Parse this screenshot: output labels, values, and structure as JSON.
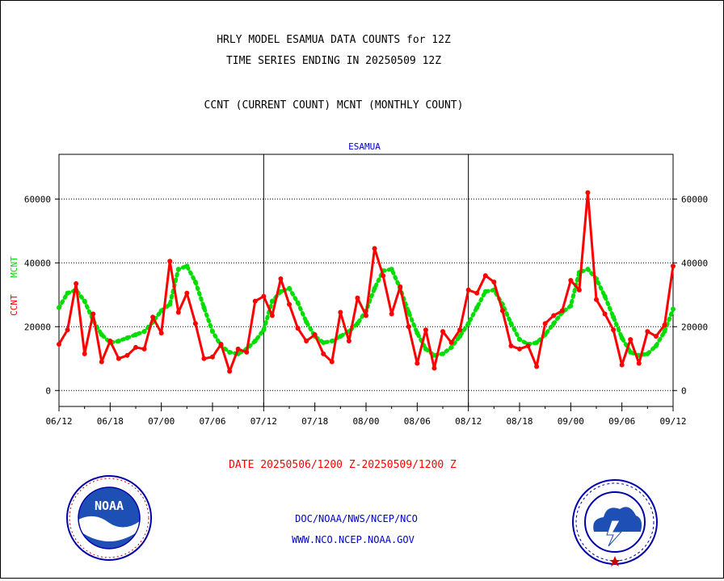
{
  "header": {
    "line1": "HRLY MODEL ESAMUA DATA COUNTS for 12Z",
    "line2": "TIME SERIES ENDING IN 20250509 12Z",
    "line3": "CCNT (CURRENT COUNT) MCNT (MONTHLY COUNT)"
  },
  "footer": {
    "date_range": "DATE 20250506/1200 Z-20250509/1200 Z",
    "org": "DOC/NOAA/NWS/NCEP/NCO",
    "url": "WWW.NCO.NCEP.NOAA.GOV"
  },
  "logos": {
    "noaa_text": "NOAA"
  },
  "colors": {
    "ccnt": "#ff0000",
    "mcnt": "#00dd00",
    "title": "#0000cc",
    "date": "#ff0000",
    "footer": "#0000cc"
  },
  "chart_data": {
    "type": "line",
    "title": "ESAMUA",
    "ylabel_parts": [
      "CCNT",
      "MCNT"
    ],
    "ylim": [
      -5000,
      74000
    ],
    "yticks": [
      0,
      20000,
      40000,
      60000
    ],
    "ytick_labels": [
      "0",
      "20000",
      "40000",
      "60000"
    ],
    "ytick_labels_right": [
      "0",
      "20000",
      "40000",
      "60000"
    ],
    "xlim": [
      0,
      72
    ],
    "xtick_positions": [
      0,
      6,
      12,
      18,
      24,
      30,
      36,
      42,
      48,
      54,
      60,
      66,
      72
    ],
    "xtick_labels": [
      "06/12",
      "06/18",
      "07/00",
      "07/06",
      "07/12",
      "07/18",
      "08/00",
      "08/06",
      "08/12",
      "08/18",
      "09/00",
      "09/06",
      "09/12"
    ],
    "day_dividers": [
      24,
      48
    ],
    "grid": "horizontal dotted",
    "series": [
      {
        "name": "CCNT",
        "style": "solid-line-with-dots",
        "values": [
          14500,
          19000,
          33500,
          11500,
          24000,
          9000,
          15500,
          10000,
          11000,
          13500,
          13000,
          23000,
          18000,
          40500,
          24500,
          30500,
          21000,
          10000,
          10500,
          14500,
          6000,
          13000,
          12000,
          28000,
          29500,
          23500,
          35000,
          27000,
          19500,
          15500,
          17500,
          11500,
          9000,
          24500,
          15500,
          29000,
          23500,
          44500,
          36000,
          24000,
          32500,
          20000,
          8500,
          19000,
          7000,
          18500,
          15000,
          19000,
          31500,
          30500,
          36000,
          34000,
          25000,
          14000,
          13000,
          14000,
          7500,
          21000,
          23500,
          25000,
          34500,
          31500,
          62000,
          28500,
          24000,
          19000,
          8000,
          16000,
          8500,
          18500,
          17000,
          20500,
          39000
        ]
      },
      {
        "name": "MCNT",
        "style": "dotted-thick",
        "values": [
          26000,
          30500,
          31500,
          28000,
          22000,
          17500,
          15000,
          15500,
          16500,
          17500,
          18500,
          21500,
          25000,
          27000,
          38000,
          39000,
          34000,
          26000,
          18500,
          14000,
          12000,
          11500,
          13000,
          15500,
          19000,
          28000,
          31000,
          32000,
          27500,
          21500,
          17000,
          15000,
          15500,
          17000,
          18500,
          21000,
          25000,
          32000,
          37500,
          38000,
          32000,
          24500,
          18000,
          13000,
          11000,
          11500,
          13500,
          17000,
          21000,
          26000,
          31000,
          31500,
          27000,
          21000,
          16000,
          14500,
          15000,
          17500,
          21000,
          24500,
          26500,
          37000,
          38000,
          35000,
          29500,
          23000,
          16500,
          12000,
          11000,
          11500,
          14000,
          18500,
          25500
        ]
      }
    ]
  }
}
